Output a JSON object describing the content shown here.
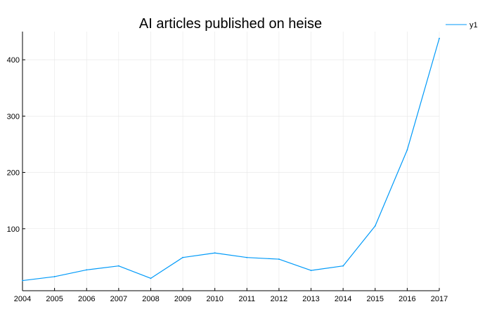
{
  "chart_data": {
    "type": "line",
    "title": "AI articles published on heise",
    "xlabel": "",
    "ylabel": "",
    "x": [
      2004,
      2005,
      2006,
      2007,
      2008,
      2009,
      2010,
      2011,
      2012,
      2013,
      2014,
      2015,
      2016,
      2017
    ],
    "series": [
      {
        "name": "y1",
        "color": "#009af9",
        "values": [
          8,
          15,
          27,
          34,
          12,
          49,
          57,
          49,
          46,
          26,
          34,
          105,
          240,
          438
        ]
      }
    ],
    "xlim": [
      2004,
      2017
    ],
    "ylim": [
      -10,
      450
    ],
    "yticks": [
      100,
      200,
      300,
      400
    ],
    "xticks": [
      2004,
      2005,
      2006,
      2007,
      2008,
      2009,
      2010,
      2011,
      2012,
      2013,
      2014,
      2015,
      2016,
      2017
    ],
    "grid": true,
    "legend_position": "top-right",
    "colors": {
      "line": "#009af9",
      "axis": "#000000",
      "grid": "#e6e6e6"
    }
  }
}
